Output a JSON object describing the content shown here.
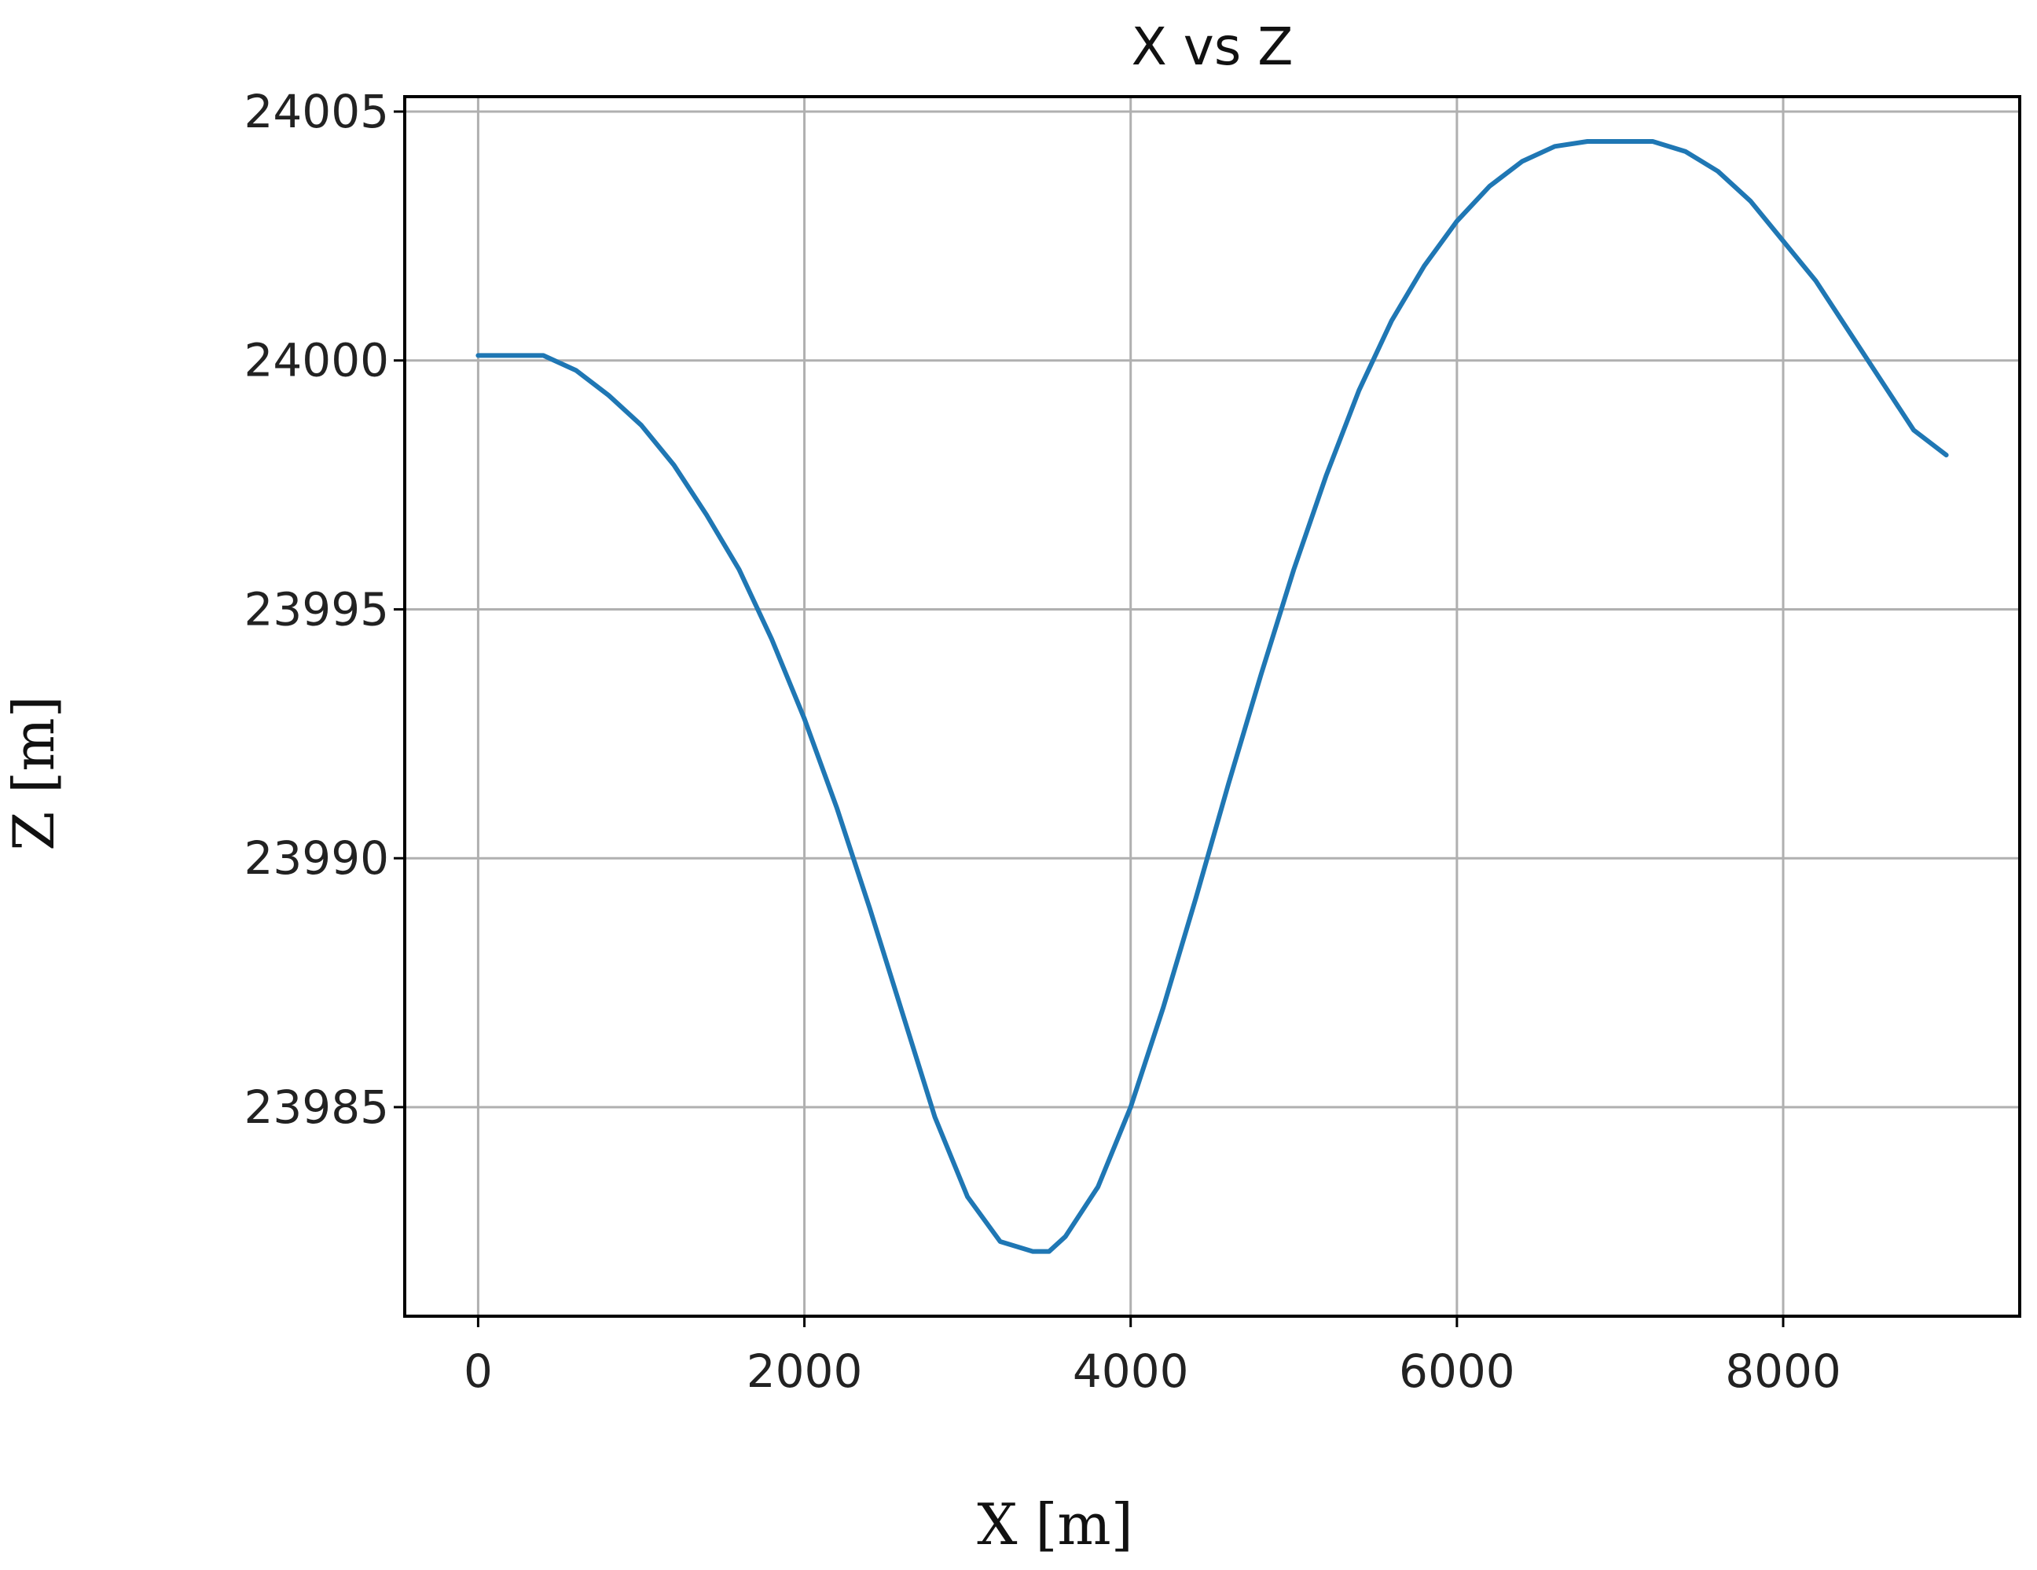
{
  "chart_data": {
    "type": "line",
    "title": "X vs Z",
    "xlabel": "X [m]",
    "ylabel": "Z [m]",
    "xlim": [
      -450,
      9450
    ],
    "ylim": [
      23980.8,
      24005.3
    ],
    "xticks": [
      0,
      2000,
      4000,
      6000,
      8000
    ],
    "yticks": [
      23985,
      23990,
      23995,
      24000,
      24005
    ],
    "grid": true,
    "legend": false,
    "colors": {
      "line": "#1f77b4",
      "grid": "#b0b0b0",
      "axes": "#000000"
    },
    "series": [
      {
        "x": [
          0,
          200,
          400,
          600,
          800,
          1000,
          1200,
          1400,
          1600,
          1800,
          2000,
          2200,
          2400,
          2600,
          2800,
          3000,
          3200,
          3400,
          3500,
          3600,
          3800,
          4000,
          4200,
          4400,
          4600,
          4800,
          5000,
          5200,
          5400,
          5600,
          5800,
          6000,
          6200,
          6400,
          6600,
          6800,
          7000,
          7100,
          7200,
          7400,
          7600,
          7800,
          8000,
          8200,
          8400,
          8600,
          8800,
          9000
        ],
        "y": [
          24000.1,
          24000.1,
          24000.1,
          23999.8,
          23999.3,
          23998.7,
          23997.9,
          23996.9,
          23995.8,
          23994.4,
          23992.8,
          23991.0,
          23989.0,
          23986.9,
          23984.8,
          23983.2,
          23982.3,
          23982.1,
          23982.1,
          23982.4,
          23983.4,
          23985.0,
          23987.0,
          23989.2,
          23991.5,
          23993.7,
          23995.8,
          23997.7,
          23999.4,
          24000.8,
          24001.9,
          24002.8,
          24003.5,
          24004.0,
          24004.3,
          24004.4,
          24004.4,
          24004.4,
          24004.4,
          24004.2,
          24003.8,
          24003.2,
          24002.4,
          24001.6,
          24000.6,
          23999.6,
          23998.6,
          23998.1
        ]
      }
    ]
  }
}
